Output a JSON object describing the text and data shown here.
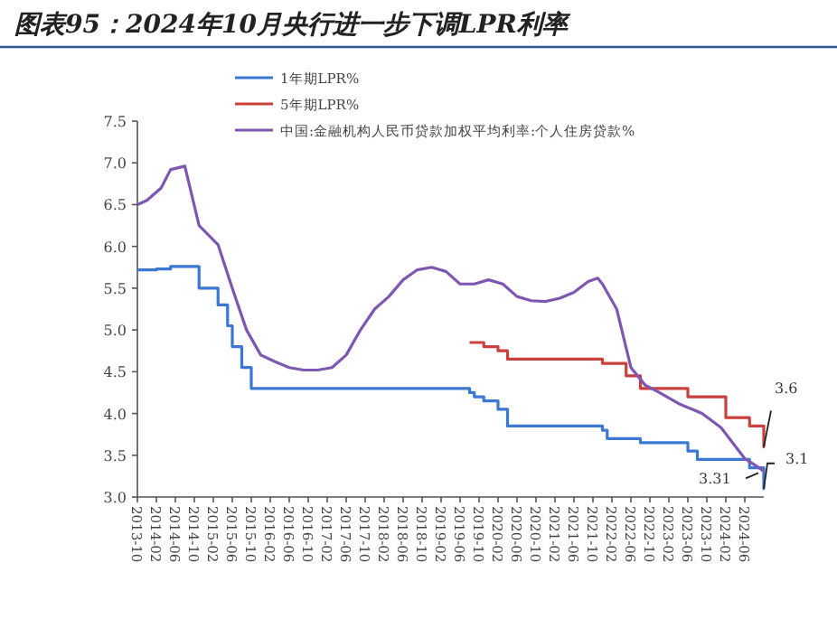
{
  "chart_data": {
    "type": "step",
    "title": "图表95：2024年10月央行进一步下调LPR利率",
    "legend": "top left",
    "xlim": [
      "2013-10",
      "2024-10"
    ],
    "ylim": [
      3.0,
      7.5
    ],
    "yticks": [
      {
        "value": 3,
        "label": "3.0"
      },
      {
        "value": 3.5,
        "label": "3.5"
      },
      {
        "value": 4,
        "label": "4.0"
      },
      {
        "value": 4.5,
        "label": "4.5"
      },
      {
        "value": 5,
        "label": "5.0"
      },
      {
        "value": 5.5,
        "label": "5.5"
      },
      {
        "value": 6,
        "label": "6.0"
      },
      {
        "value": 6.5,
        "label": "6.5"
      },
      {
        "value": 7,
        "label": "7.0"
      },
      {
        "value": 7.5,
        "label": "7.5"
      }
    ],
    "xticks": [
      "2013-10",
      "2014-02",
      "2014-06",
      "2014-10",
      "2015-02",
      "2015-06",
      "2015-10",
      "2016-02",
      "2016-06",
      "2016-10",
      "2017-02",
      "2017-06",
      "2017-10",
      "2018-02",
      "2018-06",
      "2018-10",
      "2019-02",
      "2019-06",
      "2019-10",
      "2020-02",
      "2020-06",
      "2020-10",
      "2021-02",
      "2021-06",
      "2021-10",
      "2022-02",
      "2022-06",
      "2022-10",
      "2023-02",
      "2023-06",
      "2023-10",
      "2024-02",
      "2024-06"
    ],
    "series": [
      {
        "name": "1年期LPR%",
        "color": "#3a78d4",
        "x": [
          "2013-10",
          "2014-02",
          "2014-05",
          "2014-11",
          "2015-03",
          "2015-05",
          "2015-06",
          "2015-08",
          "2015-10",
          "2019-08",
          "2019-09",
          "2019-11",
          "2020-02",
          "2020-04",
          "2021-12",
          "2022-01",
          "2022-08",
          "2023-06",
          "2023-08",
          "2024-07",
          "2024-10"
        ],
        "values": [
          5.72,
          5.73,
          5.76,
          5.5,
          5.3,
          5.05,
          4.8,
          4.55,
          4.3,
          4.25,
          4.2,
          4.15,
          4.05,
          3.85,
          3.8,
          3.7,
          3.65,
          3.55,
          3.45,
          3.35,
          3.1
        ]
      },
      {
        "name": "5年期LPR%",
        "color": "#c9403c",
        "x": [
          "2019-08",
          "2019-10",
          "2019-11",
          "2020-02",
          "2020-04",
          "2021-12",
          "2022-05",
          "2022-08",
          "2023-06",
          "2024-02",
          "2024-07",
          "2024-10"
        ],
        "values": [
          4.85,
          4.85,
          4.8,
          4.75,
          4.65,
          4.6,
          4.45,
          4.3,
          4.2,
          3.95,
          3.85,
          3.6
        ]
      },
      {
        "name": "中国:金融机构人民币贷款加权平均利率:个人住房贷款%",
        "type": "line",
        "color": "#7e57b0",
        "x": [
          "2013-10",
          "2013-12",
          "2014-03",
          "2014-05",
          "2014-08",
          "2014-11",
          "2015-03",
          "2015-06",
          "2015-09",
          "2015-12",
          "2016-03",
          "2016-06",
          "2016-09",
          "2016-12",
          "2017-03",
          "2017-06",
          "2017-09",
          "2017-12",
          "2018-03",
          "2018-06",
          "2018-09",
          "2018-12",
          "2019-03",
          "2019-06",
          "2019-09",
          "2019-12",
          "2020-03",
          "2020-06",
          "2020-09",
          "2020-12",
          "2021-03",
          "2021-06",
          "2021-09",
          "2021-11",
          "2021-12",
          "2022-03",
          "2022-06",
          "2022-09",
          "2022-12",
          "2023-04",
          "2023-09",
          "2024-01",
          "2024-06",
          "2024-09",
          "2024-10"
        ],
        "values": [
          6.5,
          6.55,
          6.7,
          6.92,
          6.96,
          6.25,
          6.02,
          5.5,
          5.0,
          4.7,
          4.62,
          4.55,
          4.52,
          4.52,
          4.55,
          4.7,
          5.0,
          5.25,
          5.4,
          5.6,
          5.72,
          5.75,
          5.7,
          5.55,
          5.55,
          5.6,
          5.55,
          5.4,
          5.35,
          5.34,
          5.38,
          5.45,
          5.58,
          5.62,
          5.55,
          5.25,
          4.55,
          4.34,
          4.25,
          4.12,
          4.0,
          3.83,
          3.46,
          3.35,
          3.31
        ]
      }
    ],
    "annotations": [
      {
        "text": "3.6",
        "x": "2024-10",
        "y": 3.6
      },
      {
        "text": "3.1",
        "x": "2024-10",
        "y": 3.1
      },
      {
        "text": "3.31",
        "x": "2024-10",
        "y": 3.31
      }
    ]
  }
}
